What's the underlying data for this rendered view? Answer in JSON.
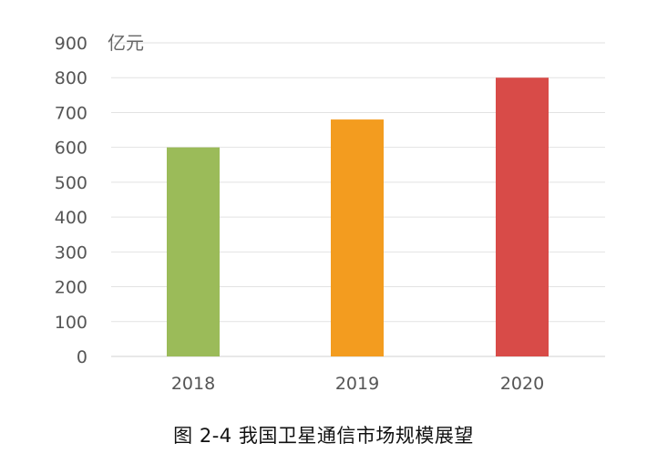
{
  "chart_data": {
    "type": "bar",
    "categories": [
      "2018",
      "2019",
      "2020"
    ],
    "values": [
      600,
      680,
      800
    ],
    "colors": [
      "#9bbb59",
      "#f39c1f",
      "#d84b48"
    ],
    "ylim": [
      0,
      900
    ],
    "yticks": [
      0,
      100,
      200,
      300,
      400,
      500,
      600,
      700,
      800,
      900
    ],
    "unit": "亿元",
    "grid": true,
    "legend": false
  },
  "caption": "图 2-4 我国卫星通信市场规模展望"
}
